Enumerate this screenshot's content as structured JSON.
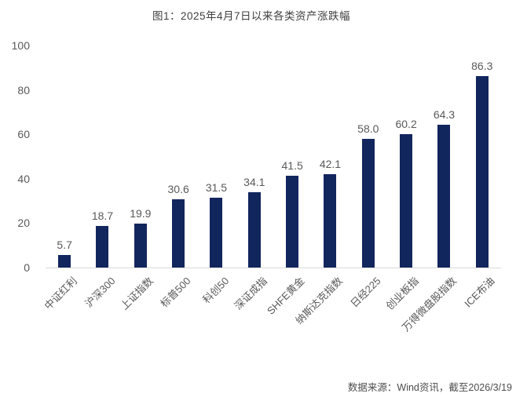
{
  "chart_data": {
    "type": "bar",
    "title": "图1：2025年4月7日以来各类资产涨跌幅",
    "categories": [
      "中证红利",
      "沪深300",
      "上证指数",
      "标普500",
      "科创50",
      "深证成指",
      "SHFE黄金",
      "纳斯达克指数",
      "日经225",
      "创业板指",
      "万得微盘股指数",
      "ICE布油"
    ],
    "values": [
      5.7,
      18.7,
      19.9,
      30.6,
      31.5,
      34.1,
      41.5,
      42.1,
      58.0,
      60.2,
      64.3,
      86.3
    ],
    "value_labels": [
      "5.7",
      "18.7",
      "19.9",
      "30.6",
      "31.5",
      "34.1",
      "41.5",
      "42.1",
      "58.0",
      "60.2",
      "64.3",
      "86.3"
    ],
    "xlabel": "",
    "ylabel": "",
    "ylim": [
      0,
      100
    ],
    "yticks": [
      0,
      20,
      40,
      60,
      80,
      100
    ],
    "grid": false,
    "legend": "none",
    "bar_color": "#12265E",
    "label_color": "#595959",
    "axis_line_color": "#D9D9D9",
    "title_color": "#404040"
  },
  "footer": {
    "source": "数据来源：Wind资讯，截至2026/3/19"
  }
}
